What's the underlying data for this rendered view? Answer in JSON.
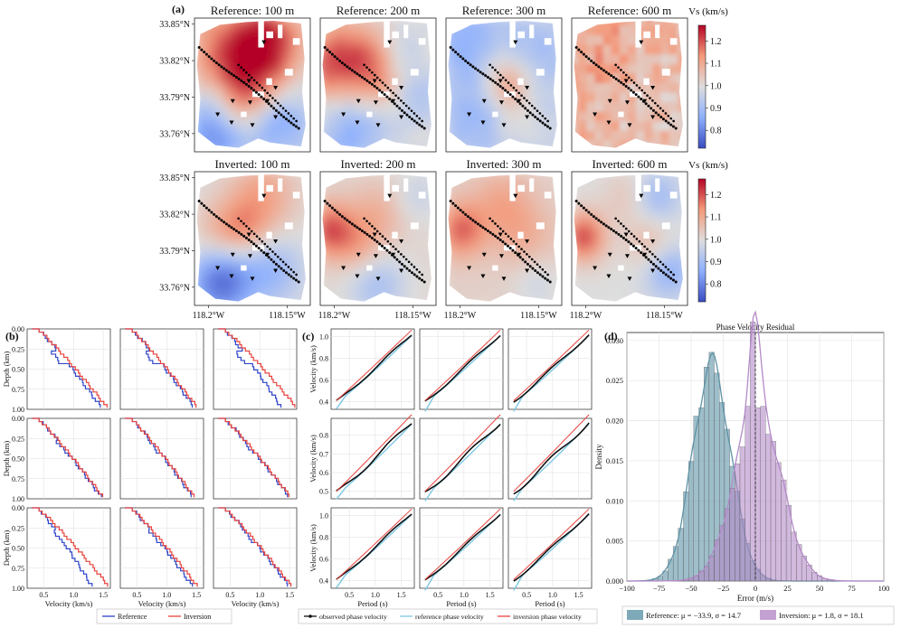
{
  "panel_labels": {
    "a": "(a)",
    "b": "(b)",
    "c": "(c)",
    "d": "(d)"
  },
  "maps": {
    "colorbar_label": "Vs (km/s)",
    "colorbar_ticks": [
      "0.8",
      "0.9",
      "1.0",
      "1.1",
      "1.2"
    ],
    "colorbar_range": [
      0.72,
      1.27
    ],
    "lat_ticks": [
      "33.85°N",
      "33.82°N",
      "33.79°N",
      "33.76°N"
    ],
    "lon_ticks": [
      "118.2°W",
      "118.15°W"
    ],
    "rows": [
      [
        "Reference: 100 m",
        "Reference: 200 m",
        "Reference: 300 m",
        "Reference: 600 m"
      ],
      [
        "Inverted: 100 m",
        "Inverted: 200 m",
        "Inverted: 300 m",
        "Inverted: 600 m"
      ]
    ]
  },
  "profiles": {
    "ylabel": "Depth (km)",
    "xlabel": "Velocity (km/s)",
    "yticks": [
      "0.00",
      "0.25",
      "0.50",
      "0.75",
      "1.00"
    ],
    "xticks": [
      "0.5",
      "1.0",
      "1.5"
    ],
    "legend": [
      "Reference",
      "Inversion"
    ],
    "colors": {
      "reference": "#2f45c9",
      "inversion": "#e8423c"
    }
  },
  "dispersion": {
    "ylabel": "Velocity (km/s)",
    "xlabel": "Period (s)",
    "xticks": [
      "0.5",
      "1.0",
      "1.5"
    ],
    "row_yticks": [
      [
        "0.4",
        "0.6",
        "0.8",
        "1.0"
      ],
      [
        "0.5",
        "0.6",
        "0.7",
        "0.8"
      ],
      [
        "0.4",
        "0.6",
        "0.8",
        "1.0"
      ]
    ],
    "legend": [
      "observed phase velocity",
      "reference phase velocity",
      "inversion phase velocity"
    ],
    "colors": {
      "observed": "#111111",
      "reference": "#7ec8e3",
      "inversion": "#e8423c"
    }
  },
  "chart_data": {
    "type": "bar",
    "title": "Phase Velocity Residual",
    "xlabel": "Error (m/s)",
    "ylabel": "Density",
    "xlim": [
      -100,
      100
    ],
    "ylim": [
      0,
      0.031
    ],
    "xticks": [
      "-100",
      "-75",
      "-50",
      "-25",
      "0",
      "25",
      "50",
      "75",
      "100"
    ],
    "yticks": [
      "0.000",
      "0.005",
      "0.010",
      "0.015",
      "0.020",
      "0.025",
      "0.030"
    ],
    "bin_width": 4,
    "series": [
      {
        "name": "Reference: μ = −33.9, σ = 14.7",
        "color": "#5e93a6",
        "mean": -33.9,
        "std": 14.7
      },
      {
        "name": "Inversion: μ = 1.8, σ = 18.1",
        "color": "#b48ac8",
        "mean": 1.8,
        "std": 18.1
      }
    ]
  }
}
